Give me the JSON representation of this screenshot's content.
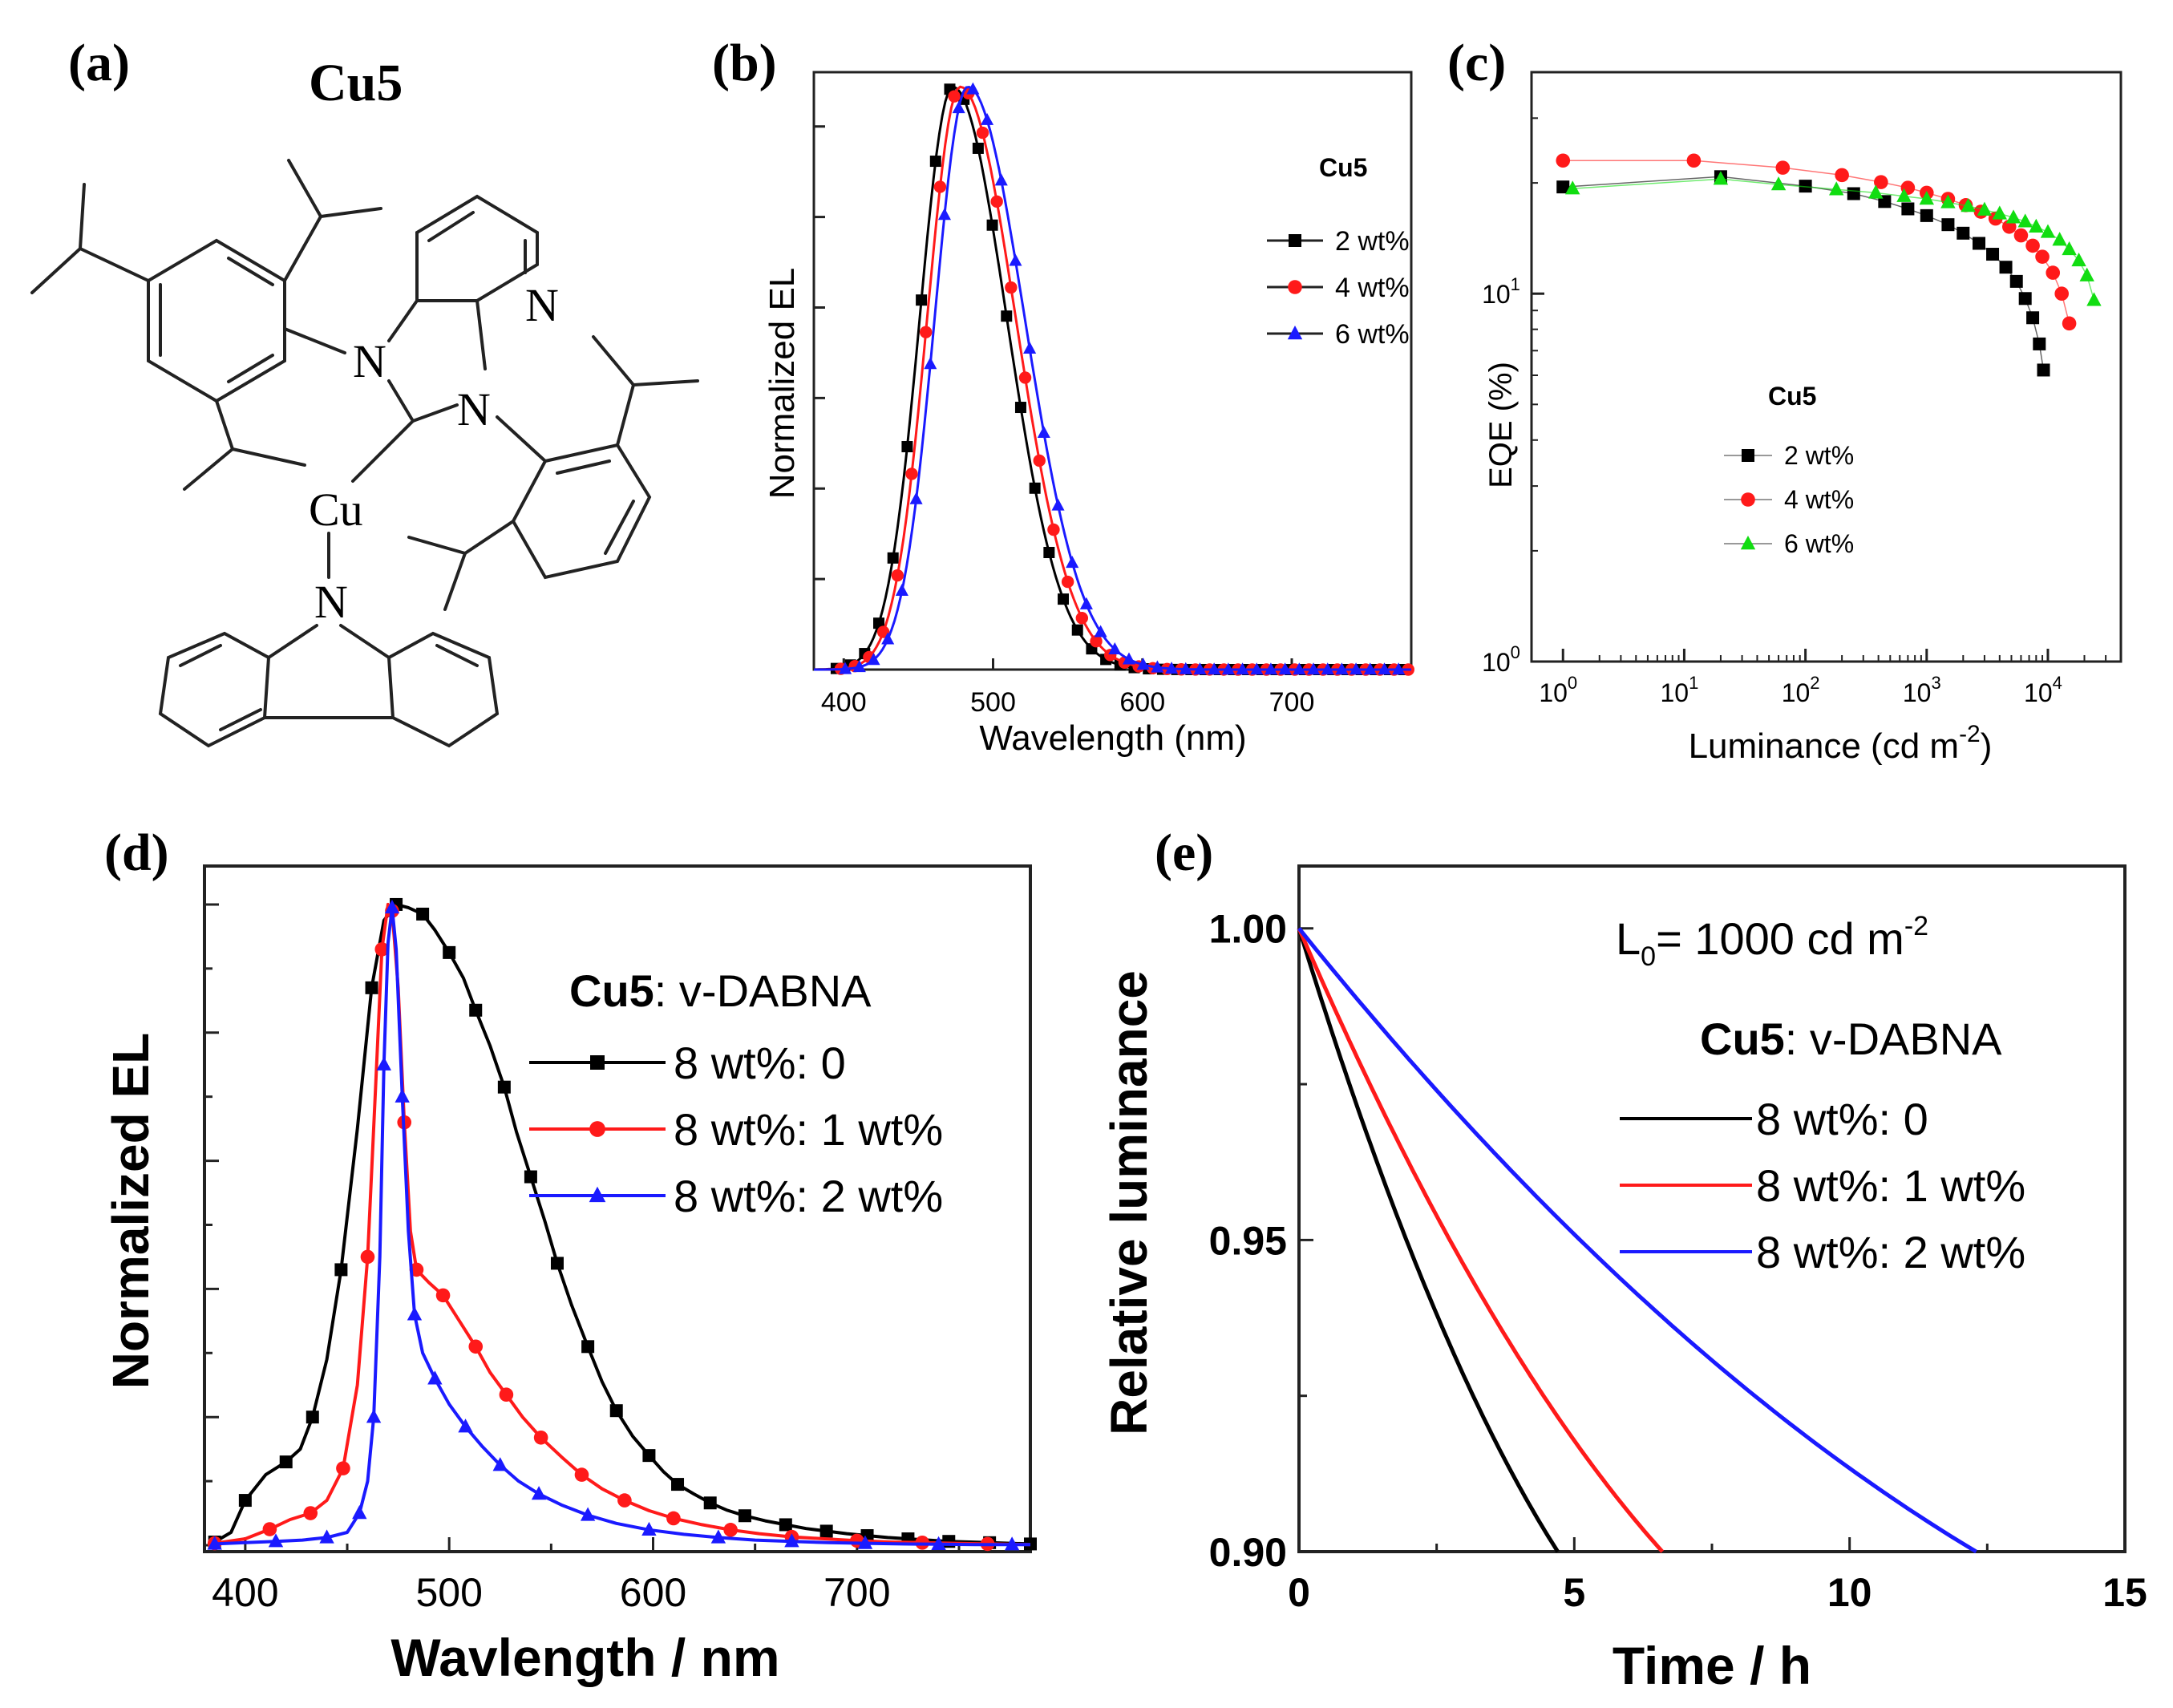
{
  "figure": {
    "panel_labels": [
      "(a)",
      "(b)",
      "(c)",
      "(d)",
      "(e)"
    ]
  },
  "panel_a": {
    "title": "Cu5",
    "atoms": {
      "n1": "N",
      "n2": "N",
      "n_pyr": "N",
      "cu": "Cu",
      "n_carb": "N"
    }
  },
  "colors": {
    "black": "#000000",
    "red": "#ff1a1a",
    "blue": "#1a1aff",
    "green": "#11dd11",
    "axis": "#222222"
  },
  "chart_data": [
    {
      "id": "b",
      "type": "line",
      "title": "",
      "xlabel": "Wavelength (nm)",
      "ylabel": "Normalized EL",
      "xlim": [
        380,
        780
      ],
      "ylim": [
        0,
        1.02
      ],
      "xticks": [
        400,
        500,
        600,
        700
      ],
      "legend": {
        "title": "Cu5",
        "placement": "top-right"
      },
      "series": [
        {
          "name": "2 wt%",
          "color": "#000000",
          "marker": "square",
          "peak": 473,
          "sigL": 22,
          "sigR": 36,
          "x_start": 395,
          "x_step": 9.5
        },
        {
          "name": "4 wt%",
          "color": "#ff1a1a",
          "marker": "circle",
          "peak": 478,
          "sigL": 22,
          "sigR": 37,
          "x_start": 398,
          "x_step": 9.5
        },
        {
          "name": "6 wt%",
          "color": "#1a1aff",
          "marker": "triangle",
          "peak": 483,
          "sigL": 22,
          "sigR": 38,
          "x_start": 401,
          "x_step": 9.5
        }
      ]
    },
    {
      "id": "c",
      "type": "scatter",
      "xlabel": "Luminance (cd m",
      "xlabel_sup": "-2",
      "xlabel_end": ")",
      "ylabel": "EQE (%)",
      "xscale": "log",
      "yscale": "log",
      "xlim": [
        0.55,
        40000
      ],
      "ylim": [
        1,
        40
      ],
      "xticks": [
        {
          "base": "10",
          "exp": "0"
        },
        {
          "base": "10",
          "exp": "1"
        },
        {
          "base": "10",
          "exp": "2"
        },
        {
          "base": "10",
          "exp": "3"
        },
        {
          "base": "10",
          "exp": "4"
        }
      ],
      "yticks": [
        {
          "base": "10",
          "exp": "0"
        },
        {
          "base": "10",
          "exp": "1"
        }
      ],
      "legend": {
        "title": "Cu5",
        "placement": "center-left"
      },
      "series": [
        {
          "name": "2 wt%",
          "color": "#000000",
          "marker": "square",
          "x": [
            1,
            20,
            100,
            250,
            450,
            700,
            1000,
            1500,
            2000,
            2700,
            3500,
            4500,
            5500,
            6500,
            7500,
            8500,
            9200
          ],
          "y": [
            19.5,
            20.8,
            19.6,
            18.7,
            17.8,
            17.0,
            16.3,
            15.4,
            14.6,
            13.7,
            12.8,
            11.8,
            10.8,
            9.7,
            8.6,
            7.3,
            6.2
          ]
        },
        {
          "name": "4 wt%",
          "color": "#ff1a1a",
          "marker": "circle",
          "x": [
            1,
            12,
            65,
            200,
            420,
            700,
            1000,
            1500,
            2100,
            2800,
            3700,
            4800,
            6000,
            7500,
            9000,
            11000,
            13000,
            15000
          ],
          "y": [
            23.0,
            23.0,
            22.0,
            21.0,
            20.1,
            19.4,
            18.8,
            18.1,
            17.4,
            16.7,
            16.0,
            15.2,
            14.4,
            13.5,
            12.6,
            11.4,
            10.0,
            8.3
          ]
        },
        {
          "name": "6 wt%",
          "color": "#11dd11",
          "marker": "triangle",
          "x": [
            1.2,
            20,
            60,
            180,
            380,
            650,
            1000,
            1500,
            2200,
            3000,
            4000,
            5200,
            6500,
            8000,
            10000,
            12500,
            15000,
            18000,
            21000,
            24000
          ],
          "y": [
            19.3,
            20.5,
            19.8,
            19.2,
            18.8,
            18.4,
            18.1,
            17.7,
            17.3,
            16.9,
            16.5,
            16.1,
            15.7,
            15.2,
            14.7,
            14.0,
            13.2,
            12.3,
            11.2,
            9.6
          ]
        }
      ]
    },
    {
      "id": "d",
      "type": "line",
      "xlabel": "Wavlength / nm",
      "ylabel": "Normalized EL",
      "xlim": [
        380,
        785
      ],
      "ylim": [
        0,
        1.02
      ],
      "xticks": [
        400,
        500,
        600,
        700
      ],
      "legend": {
        "title_bold": "Cu5",
        "title_rest": ": v-DABNA",
        "placement": "top-right"
      },
      "series": [
        {
          "name": "8 wt%: 0",
          "color": "#000000",
          "marker": "square",
          "x": [
            385,
            393,
            400,
            410,
            420,
            427,
            433,
            440,
            447,
            455,
            462,
            468,
            474,
            480,
            487,
            493,
            500,
            507,
            513,
            520,
            527,
            533,
            540,
            547,
            553,
            560,
            568,
            575,
            582,
            590,
            598,
            605,
            612,
            620,
            628,
            636,
            645,
            655,
            665,
            675,
            685,
            695,
            705,
            715,
            725,
            735,
            745,
            755,
            765,
            775,
            785
          ],
          "y": [
            0.005,
            0.02,
            0.07,
            0.11,
            0.13,
            0.15,
            0.2,
            0.29,
            0.43,
            0.65,
            0.87,
            0.975,
            1.0,
            0.995,
            0.985,
            0.96,
            0.925,
            0.885,
            0.835,
            0.78,
            0.715,
            0.645,
            0.575,
            0.505,
            0.44,
            0.375,
            0.31,
            0.255,
            0.21,
            0.17,
            0.14,
            0.115,
            0.095,
            0.08,
            0.066,
            0.055,
            0.046,
            0.038,
            0.032,
            0.026,
            0.022,
            0.018,
            0.015,
            0.012,
            0.01,
            0.008,
            0.006,
            0.005,
            0.004,
            0.003,
            0.002
          ],
          "marker_every": 2
        },
        {
          "name": "8 wt%: 1 wt%",
          "color": "#ff1a1a",
          "marker": "circle",
          "x": [
            385,
            400,
            412,
            422,
            432,
            440,
            448,
            455,
            460,
            464,
            467,
            470,
            472,
            475,
            478,
            481,
            484,
            490,
            497,
            505,
            513,
            520,
            528,
            536,
            545,
            555,
            565,
            575,
            586,
            598,
            610,
            624,
            638,
            652,
            668,
            684,
            700,
            716,
            732,
            748,
            764,
            785
          ],
          "y": [
            0.003,
            0.01,
            0.025,
            0.04,
            0.05,
            0.07,
            0.12,
            0.25,
            0.45,
            0.72,
            0.93,
            1.0,
            0.99,
            0.87,
            0.66,
            0.49,
            0.43,
            0.41,
            0.39,
            0.35,
            0.31,
            0.27,
            0.235,
            0.2,
            0.168,
            0.138,
            0.11,
            0.088,
            0.07,
            0.054,
            0.042,
            0.032,
            0.024,
            0.018,
            0.013,
            0.01,
            0.007,
            0.005,
            0.004,
            0.003,
            0.002,
            0.001
          ],
          "marker_every": 2
        },
        {
          "name": "8 wt%: 2 wt%",
          "color": "#1a1aff",
          "marker": "triangle",
          "x": [
            385,
            400,
            415,
            428,
            440,
            450,
            456,
            460,
            463,
            466,
            468,
            470,
            472,
            474,
            477,
            480,
            483,
            487,
            493,
            500,
            508,
            516,
            525,
            534,
            544,
            555,
            568,
            582,
            598,
            615,
            632,
            650,
            668,
            686,
            704,
            722,
            740,
            758,
            776,
            785
          ],
          "y": [
            0.002,
            0.004,
            0.006,
            0.008,
            0.012,
            0.02,
            0.05,
            0.1,
            0.2,
            0.45,
            0.75,
            0.94,
            0.995,
            0.93,
            0.7,
            0.49,
            0.36,
            0.3,
            0.26,
            0.22,
            0.185,
            0.155,
            0.125,
            0.1,
            0.08,
            0.063,
            0.047,
            0.034,
            0.024,
            0.017,
            0.012,
            0.008,
            0.006,
            0.004,
            0.003,
            0.002,
            0.0015,
            0.001,
            0.001,
            0.001
          ],
          "marker_every": 2
        }
      ]
    },
    {
      "id": "e",
      "type": "line",
      "xlabel": "Time / h",
      "ylabel": "Relative luminance",
      "xlim": [
        0,
        15
      ],
      "ylim": [
        0.9,
        1.01
      ],
      "xticks": [
        0,
        5,
        10,
        15
      ],
      "yticks": [
        "0.90",
        "0.95",
        "1.00"
      ],
      "annotation": {
        "pre": "L",
        "sub": "0",
        "mid": "=  1000 cd m",
        "sup": "-2"
      },
      "legend": {
        "title_bold": "Cu5",
        "title_rest": ": v-DABNA",
        "placement": "center-right"
      },
      "series": [
        {
          "name": "8 wt%: 0",
          "color": "#000000",
          "end_time": 4.7
        },
        {
          "name": "8 wt%: 1 wt%",
          "color": "#ff1a1a",
          "end_time": 6.6
        },
        {
          "name": "8 wt%: 2 wt%",
          "color": "#1a1aff",
          "end_time": 12.3
        }
      ]
    }
  ]
}
